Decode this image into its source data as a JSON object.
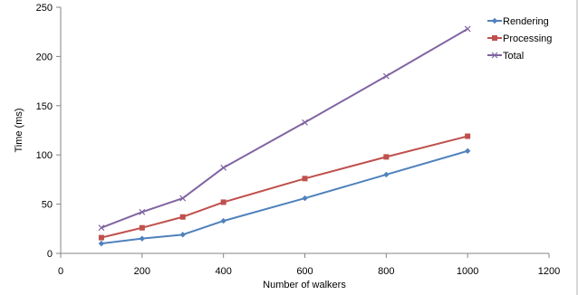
{
  "chart_data": {
    "type": "line",
    "title": "",
    "xlabel": "Number of walkers",
    "ylabel": "Time (ms)",
    "xlim": [
      0,
      1200
    ],
    "ylim": [
      0,
      250
    ],
    "xticks": [
      0,
      200,
      400,
      600,
      800,
      1000,
      1200
    ],
    "yticks": [
      0,
      50,
      100,
      150,
      200,
      250
    ],
    "xtick_labels": [
      "0",
      "200",
      "400",
      "600",
      "800",
      "1000",
      "1200"
    ],
    "ytick_labels": [
      "0",
      "50",
      "100",
      "150",
      "200",
      "250"
    ],
    "grid": false,
    "legend_position": "top-right",
    "x": [
      100,
      200,
      300,
      400,
      600,
      800,
      1000
    ],
    "series": [
      {
        "name": "Rendering",
        "color": "#4f81bd",
        "marker": "diamond",
        "values": [
          10,
          15,
          19,
          33,
          56,
          80,
          104
        ]
      },
      {
        "name": "Processing",
        "color": "#c0504d",
        "marker": "square",
        "values": [
          16,
          26,
          37,
          52,
          76,
          98,
          119
        ]
      },
      {
        "name": "Total",
        "color": "#8064a2",
        "marker": "x",
        "values": [
          26,
          42,
          56,
          87,
          133,
          180,
          228
        ]
      }
    ]
  }
}
